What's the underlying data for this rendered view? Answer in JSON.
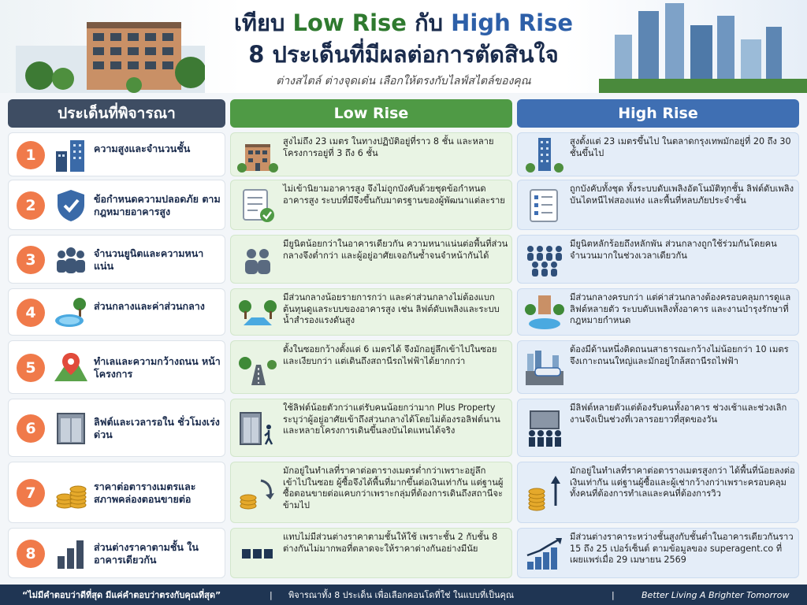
{
  "header": {
    "title_pre": "เทียบ ",
    "title_low": "Low Rise",
    "title_mid": " กับ ",
    "title_high": "High Rise",
    "subtitle": "8 ประเด็นที่มีผลต่อการตัดสินใจ",
    "tagline": "ต่างสไตล์ ต่างจุดเด่น เลือกให้ตรงกับไลฟ์สไตล์ของคุณ"
  },
  "columns": {
    "topic": "ประเด็นที่พิจารณา",
    "low": "Low Rise",
    "high": "High Rise"
  },
  "colors": {
    "navy": "#1f3553",
    "green": "#4f9a45",
    "blue": "#3f6fb3",
    "orange": "#f07a4a"
  },
  "rows": [
    {
      "num": "1",
      "topic": "ความสูงและจำนวนชั้น",
      "icon": "buildings-icon",
      "low": "สูงไม่ถึง 23 เมตร ในทางปฏิบัติอยู่ที่ราว 8 ชั้น และหลายโครงการอยู่ที่ 3 ถึง 6 ชั้น",
      "high": "สูงตั้งแต่ 23 เมตรขึ้นไป ในตลาดกรุงเทพมักอยู่ที่ 20 ถึง 30 ชั้นขึ้นไป"
    },
    {
      "num": "2",
      "topic": "ข้อกำหนดความปลอดภัย ตามกฎหมายอาคารสูง",
      "icon": "shield-check-icon",
      "low": "ไม่เข้านิยามอาคารสูง จึงไม่ถูกบังคับด้วยชุดข้อกำหนดอาคารสูง ระบบที่มีจึงขึ้นกับมาตรฐานของผู้พัฒนาแต่ละราย",
      "high": "ถูกบังคับทั้งชุด ทั้งระบบดับเพลิงอัตโนมัติทุกชั้น ลิฟต์ดับเพลิง บันไดหนีไฟสองแห่ง และพื้นที่หลบภัยประจำชั้น"
    },
    {
      "num": "3",
      "topic": "จำนวนยูนิตและความหนาแน่น",
      "icon": "people-icon",
      "low": "มียูนิตน้อยกว่าในอาคารเดียวกัน ความหนาแน่นต่อพื้นที่ส่วนกลางจึงต่ำกว่า และผู้อยู่อาศัยเจอกันซ้ำจนจำหน้ากันได้",
      "high": "มียูนิตหลักร้อยถึงหลักพัน ส่วนกลางถูกใช้ร่วมกันโดยคนจำนวนมากในช่วงเวลาเดียวกัน"
    },
    {
      "num": "4",
      "topic": "ส่วนกลางและค่าส่วนกลาง",
      "icon": "pool-icon",
      "low": "มีส่วนกลางน้อยรายการกว่า และค่าส่วนกลางไม่ต้องแบกต้นทุนดูแลระบบของอาคารสูง เช่น ลิฟต์ดับเพลิงและระบบน้ำสำรองแรงดันสูง",
      "high": "มีส่วนกลางครบกว่า แต่ค่าส่วนกลางต้องครอบคลุมการดูแลลิฟต์หลายตัว ระบบดับเพลิงทั้งอาคาร และงานบำรุงรักษาที่กฎหมายกำหนด"
    },
    {
      "num": "5",
      "topic": "ทำเลและความกว้างถนน หน้าโครงการ",
      "icon": "map-pin-icon",
      "low": "ตั้งในซอยกว้างตั้งแต่ 6 เมตรได้ จึงมักอยู่ลึกเข้าไปในซอยและเงียบกว่า แต่เดินถึงสถานีรถไฟฟ้าได้ยากกว่า",
      "high": "ต้องมีด้านหนึ่งติดถนนสาธารณะกว้างไม่น้อยกว่า 10 เมตร จึงเกาะถนนใหญ่และมักอยู่ใกล้สถานีรถไฟฟ้า"
    },
    {
      "num": "6",
      "topic": "ลิฟต์และเวลารอใน ชั่วโมงเร่งด่วน",
      "icon": "elevator-icon",
      "low": "ใช้ลิฟต์น้อยตัวกว่าแต่รับคนน้อยกว่ามาก Plus Property ระบุว่าผู้อยู่อาศัยเข้าถึงส่วนกลางได้โดยไม่ต้องรอลิฟต์นาน และหลายโครงการเดินขึ้นลงบันไดแทนได้จริง",
      "high": "มีลิฟต์หลายตัวแต่ต้องรับคนทั้งอาคาร ช่วงเช้าและช่วงเลิกงานจึงเป็นช่วงที่เวลารอยาวที่สุดของวัน"
    },
    {
      "num": "7",
      "topic": "ราคาต่อตารางเมตรและ สภาพคล่องตอนขายต่อ",
      "icon": "coins-icon",
      "low": "มักอยู่ในทำเลที่ราคาต่อตารางเมตรต่ำกว่าเพราะอยู่ลึกเข้าไปในซอย ผู้ซื้อจึงได้พื้นที่มากขึ้นต่อเงินเท่ากัน แต่ฐานผู้ซื้อตอนขายต่อแคบกว่าเพราะกลุ่มที่ต้องการเดินถึงสถานีจะข้ามไป",
      "high": "มักอยู่ในทำเลที่ราคาต่อตารางเมตรสูงกว่า ได้พื้นที่น้อยลงต่อเงินเท่ากัน แต่ฐานผู้ซื้อและผู้เช่ากว้างกว่าเพราะครอบคลุมทั้งคนที่ต้องการทำเลและคนที่ต้องการวิว"
    },
    {
      "num": "8",
      "topic": "ส่วนต่างราคาตามชั้น ในอาคารเดียวกัน",
      "icon": "bar-chart-icon",
      "low": "แทบไม่มีส่วนต่างราคาตามชั้นให้ใช้ เพราะชั้น 2 กับชั้น 8 ต่างกันไม่มากพอที่ตลาดจะให้ราคาต่างกันอย่างมีนัย",
      "high": "มีส่วนต่างราคาระหว่างชั้นสูงกับชั้นต่ำในอาคารเดียวกันราว 15 ถึง 25 เปอร์เซ็นต์ ตามข้อมูลของ superagent.co ที่เผยแพร่เมื่อ 29 เมษายน 2569"
    }
  ],
  "footer": {
    "quote": "“ไม่มีคำตอบว่าดีที่สุด มีแค่คำตอบว่าตรงกับคุณที่สุด”",
    "sep": "|",
    "middle": "พิจารณาทั้ง 8 ประเด็น เพื่อเลือกคอนโดที่ใช่ ในแบบที่เป็นคุณ",
    "brand": "Better Living  A Brighter Tomorrow"
  }
}
